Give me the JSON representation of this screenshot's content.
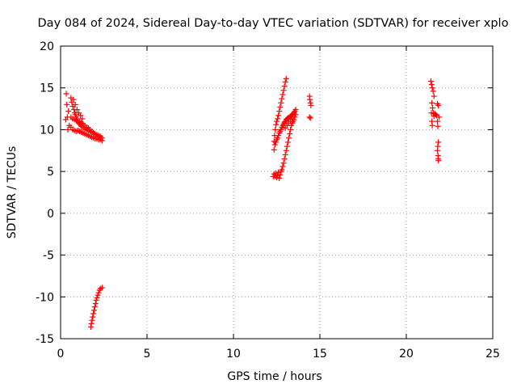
{
  "chart_data": {
    "type": "scatter",
    "title": "Day 084 of 2024, Sidereal Day-to-day VTEC variation (SDTVAR) for receiver xplo",
    "xlabel": "GPS time / hours",
    "ylabel": "SDTVAR / TECUs",
    "xlim": [
      0,
      25
    ],
    "ylim": [
      -15,
      20
    ],
    "xticks": [
      "0",
      "5",
      "10",
      "15",
      "20",
      "25"
    ],
    "yticks": [
      "-15",
      "-10",
      "-5",
      "0",
      "5",
      "10",
      "15",
      "20"
    ],
    "grid": true,
    "marker": "+",
    "series": [
      {
        "name": "SDTVAR",
        "color": "#ff0000",
        "points": [
          [
            0.33,
            14.3
          ],
          [
            0.36,
            13.0
          ],
          [
            0.39,
            11.5
          ],
          [
            0.42,
            10.0
          ],
          [
            0.3,
            11.2
          ],
          [
            0.45,
            12.2
          ],
          [
            0.5,
            10.5
          ],
          [
            0.6,
            13.8
          ],
          [
            0.65,
            13.3
          ],
          [
            0.7,
            12.8
          ],
          [
            0.75,
            13.6
          ],
          [
            0.78,
            12.4
          ],
          [
            0.82,
            12.0
          ],
          [
            0.86,
            11.8
          ],
          [
            0.9,
            11.5
          ],
          [
            0.95,
            11.3
          ],
          [
            1.0,
            11.0
          ],
          [
            1.05,
            10.8
          ],
          [
            1.1,
            10.7
          ],
          [
            1.15,
            10.6
          ],
          [
            1.2,
            10.4
          ],
          [
            1.3,
            10.3
          ],
          [
            1.4,
            10.1
          ],
          [
            1.5,
            10.0
          ],
          [
            1.6,
            9.9
          ],
          [
            1.7,
            9.8
          ],
          [
            1.8,
            9.7
          ],
          [
            1.9,
            9.6
          ],
          [
            2.0,
            9.5
          ],
          [
            2.1,
            9.4
          ],
          [
            2.2,
            9.3
          ],
          [
            2.3,
            9.2
          ],
          [
            2.4,
            9.0
          ],
          [
            0.6,
            11.5
          ],
          [
            0.7,
            11.3
          ],
          [
            0.8,
            11.2
          ],
          [
            0.9,
            11.1
          ],
          [
            1.0,
            11.0
          ],
          [
            1.1,
            10.9
          ],
          [
            1.2,
            10.8
          ],
          [
            1.3,
            10.7
          ],
          [
            1.4,
            10.5
          ],
          [
            1.5,
            10.3
          ],
          [
            1.6,
            10.2
          ],
          [
            1.7,
            10.0
          ],
          [
            1.8,
            9.8
          ],
          [
            1.9,
            9.6
          ],
          [
            2.0,
            9.4
          ],
          [
            2.1,
            9.2
          ],
          [
            2.2,
            9.1
          ],
          [
            2.3,
            9.0
          ],
          [
            0.6,
            10.3
          ],
          [
            0.7,
            10.0
          ],
          [
            0.8,
            9.9
          ],
          [
            0.9,
            9.8
          ],
          [
            1.0,
            9.9
          ],
          [
            1.1,
            9.8
          ],
          [
            1.2,
            9.7
          ],
          [
            1.3,
            9.6
          ],
          [
            1.4,
            9.5
          ],
          [
            1.5,
            9.4
          ],
          [
            1.6,
            9.3
          ],
          [
            1.7,
            9.2
          ],
          [
            1.8,
            9.1
          ],
          [
            1.9,
            9.0
          ],
          [
            2.0,
            8.9
          ],
          [
            2.1,
            8.9
          ],
          [
            2.2,
            8.8
          ],
          [
            2.3,
            8.8
          ],
          [
            2.4,
            8.7
          ],
          [
            0.85,
            13.0
          ],
          [
            0.95,
            12.4
          ],
          [
            1.05,
            12.0
          ],
          [
            1.15,
            11.7
          ],
          [
            1.25,
            11.3
          ],
          [
            1.75,
            -13.6
          ],
          [
            1.78,
            -13.2
          ],
          [
            1.82,
            -12.8
          ],
          [
            1.86,
            -12.4
          ],
          [
            1.9,
            -12.0
          ],
          [
            1.94,
            -11.6
          ],
          [
            1.98,
            -11.2
          ],
          [
            2.02,
            -10.8
          ],
          [
            2.06,
            -10.4
          ],
          [
            2.1,
            -10.1
          ],
          [
            2.15,
            -9.8
          ],
          [
            2.2,
            -9.5
          ],
          [
            2.25,
            -9.2
          ],
          [
            2.3,
            -9.0
          ],
          [
            2.4,
            -8.9
          ],
          [
            12.35,
            8.6
          ],
          [
            12.38,
            9.3
          ],
          [
            12.42,
            10.0
          ],
          [
            12.46,
            10.6
          ],
          [
            12.5,
            11.0
          ],
          [
            12.55,
            11.3
          ],
          [
            12.6,
            11.7
          ],
          [
            12.65,
            12.2
          ],
          [
            12.7,
            12.7
          ],
          [
            12.75,
            13.2
          ],
          [
            12.8,
            13.7
          ],
          [
            12.85,
            14.2
          ],
          [
            12.9,
            14.7
          ],
          [
            12.95,
            15.2
          ],
          [
            13.0,
            15.7
          ],
          [
            13.05,
            16.1
          ],
          [
            12.35,
            7.6
          ],
          [
            12.4,
            8.2
          ],
          [
            12.45,
            8.5
          ],
          [
            12.5,
            8.8
          ],
          [
            12.55,
            9.0
          ],
          [
            12.6,
            9.3
          ],
          [
            12.65,
            9.6
          ],
          [
            12.7,
            9.8
          ],
          [
            12.75,
            10.0
          ],
          [
            12.8,
            10.3
          ],
          [
            12.85,
            10.5
          ],
          [
            12.9,
            10.7
          ],
          [
            12.95,
            10.9
          ],
          [
            13.0,
            11.0
          ],
          [
            13.05,
            11.2
          ],
          [
            13.1,
            11.3
          ],
          [
            13.15,
            11.4
          ],
          [
            13.2,
            11.4
          ],
          [
            13.25,
            11.5
          ],
          [
            13.3,
            11.6
          ],
          [
            13.35,
            11.7
          ],
          [
            13.4,
            11.8
          ],
          [
            13.45,
            11.9
          ],
          [
            13.5,
            12.0
          ],
          [
            13.55,
            12.2
          ],
          [
            13.6,
            12.4
          ],
          [
            12.3,
            4.4
          ],
          [
            12.35,
            4.7
          ],
          [
            12.4,
            4.4
          ],
          [
            12.45,
            4.8
          ],
          [
            12.5,
            4.3
          ],
          [
            12.55,
            4.5
          ],
          [
            12.6,
            4.9
          ],
          [
            12.65,
            4.2
          ],
          [
            12.7,
            4.6
          ],
          [
            12.75,
            5.0
          ],
          [
            12.8,
            5.2
          ],
          [
            12.85,
            5.6
          ],
          [
            12.9,
            6.0
          ],
          [
            12.95,
            6.5
          ],
          [
            13.0,
            7.0
          ],
          [
            13.05,
            7.5
          ],
          [
            13.1,
            8.0
          ],
          [
            13.15,
            8.5
          ],
          [
            13.2,
            9.0
          ],
          [
            13.25,
            9.5
          ],
          [
            13.3,
            10.0
          ],
          [
            13.35,
            10.5
          ],
          [
            13.4,
            10.8
          ],
          [
            13.45,
            11.0
          ],
          [
            13.5,
            11.2
          ],
          [
            13.55,
            11.5
          ],
          [
            13.6,
            11.8
          ],
          [
            13.0,
            10.2
          ],
          [
            13.1,
            10.5
          ],
          [
            13.2,
            10.8
          ],
          [
            13.3,
            11.0
          ],
          [
            13.4,
            11.3
          ],
          [
            14.4,
            14.0
          ],
          [
            14.42,
            13.6
          ],
          [
            14.45,
            13.2
          ],
          [
            14.48,
            12.9
          ],
          [
            14.4,
            11.5
          ],
          [
            14.45,
            11.4
          ],
          [
            21.42,
            15.8
          ],
          [
            21.46,
            15.4
          ],
          [
            21.5,
            15.0
          ],
          [
            21.55,
            14.6
          ],
          [
            21.6,
            14.0
          ],
          [
            21.48,
            13.2
          ],
          [
            21.52,
            12.6
          ],
          [
            21.56,
            12.0
          ],
          [
            21.6,
            11.6
          ],
          [
            21.65,
            11.9
          ],
          [
            21.7,
            11.8
          ],
          [
            21.75,
            11.7
          ],
          [
            21.8,
            11.0
          ],
          [
            21.82,
            10.4
          ],
          [
            21.85,
            8.5
          ],
          [
            21.82,
            8.0
          ],
          [
            21.8,
            7.5
          ],
          [
            21.83,
            6.9
          ],
          [
            21.85,
            6.5
          ],
          [
            21.86,
            6.3
          ],
          [
            21.8,
            13.1
          ],
          [
            21.85,
            12.9
          ],
          [
            21.9,
            11.5
          ],
          [
            21.45,
            12.0
          ],
          [
            21.48,
            11.0
          ],
          [
            21.5,
            10.5
          ]
        ]
      }
    ]
  }
}
